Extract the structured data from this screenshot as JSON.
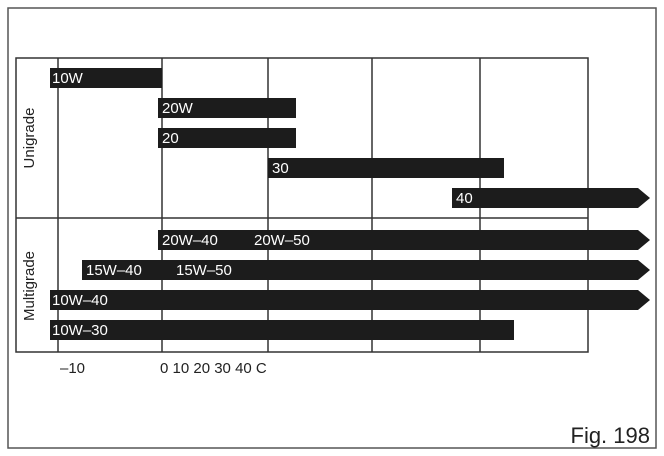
{
  "sections": [
    "Unigrade",
    "Multigrade"
  ],
  "bars": [
    {
      "labels": [
        "10W"
      ]
    },
    {
      "labels": [
        "20W"
      ]
    },
    {
      "labels": [
        "20"
      ]
    },
    {
      "labels": [
        "30"
      ]
    },
    {
      "labels": [
        "40"
      ]
    },
    {
      "labels": [
        "20W–40",
        "20W–50"
      ]
    },
    {
      "labels": [
        "15W–40",
        "15W–50"
      ]
    },
    {
      "labels": [
        "10W–40"
      ]
    },
    {
      "labels": [
        "10W–30"
      ]
    }
  ],
  "axis": [
    "–10",
    "0 10 20 30 40 C"
  ],
  "figure": "Fig. 198"
}
